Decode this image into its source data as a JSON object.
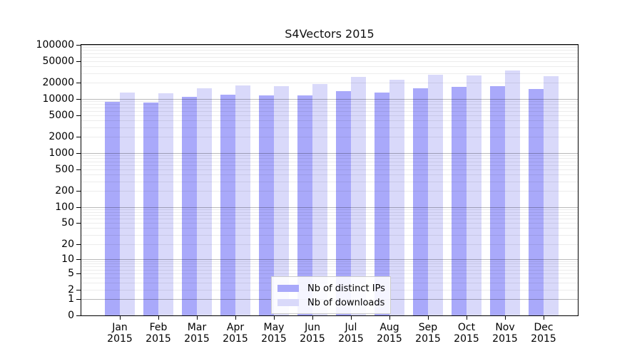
{
  "chart_title": "S4Vectors 2015",
  "colors": {
    "distinct_ips": "#a9a9fa",
    "downloads": "#d9d9fa",
    "major_grid": "rgba(0,0,0,0.27)",
    "minor_grid": "rgba(0,0,0,0.075)",
    "axis": "#000000",
    "legend_border": "#cccccc"
  },
  "legend": {
    "items": [
      {
        "label": "Nb of distinct IPs",
        "color_key": "distinct_ips"
      },
      {
        "label": "Nb of downloads",
        "color_key": "downloads"
      }
    ]
  },
  "chart_data": {
    "type": "bar",
    "title": "S4Vectors 2015",
    "categories": [
      "Jan",
      "Feb",
      "Mar",
      "Apr",
      "May",
      "Jun",
      "Jul",
      "Aug",
      "Sep",
      "Oct",
      "Nov",
      "Dec"
    ],
    "category_year": "2015",
    "series": [
      {
        "name": "Nb of distinct IPs",
        "color_key": "distinct_ips",
        "values": [
          8900,
          8650,
          11000,
          12000,
          11700,
          11700,
          14000,
          13200,
          15800,
          16800,
          17500,
          15400
        ]
      },
      {
        "name": "Nb of downloads",
        "color_key": "downloads",
        "values": [
          13200,
          12800,
          15800,
          17900,
          17400,
          19000,
          25600,
          22700,
          27600,
          27000,
          33500,
          26400
        ]
      }
    ],
    "y_axis": {
      "scale": "log10(x+1)",
      "ylim": [
        0,
        100000
      ],
      "tick_values": [
        0,
        1,
        2,
        5,
        10,
        20,
        50,
        100,
        200,
        500,
        1000,
        2000,
        5000,
        10000,
        20000,
        50000,
        100000
      ]
    },
    "x_axis": {
      "label_lines": 2
    },
    "grid": true,
    "legend_position": "inside-bottom-center"
  }
}
